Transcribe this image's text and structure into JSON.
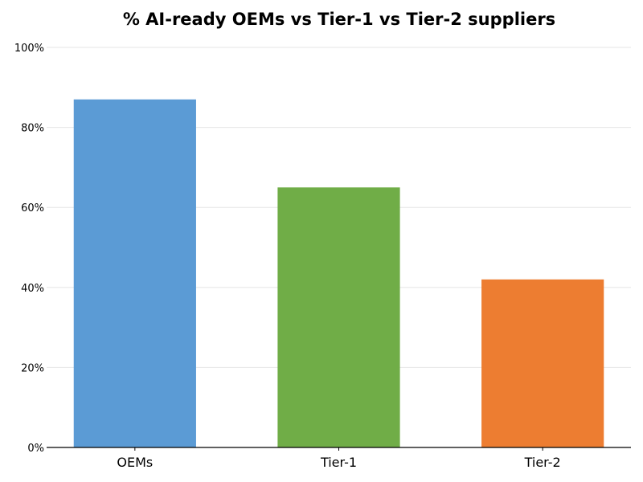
{
  "chart_data": {
    "type": "bar",
    "title": "% AI-ready OEMs vs Tier-1 vs Tier-2 suppliers",
    "xlabel": "",
    "ylabel": "",
    "categories": [
      "OEMs",
      "Tier-1",
      "Tier-2"
    ],
    "values": [
      87,
      65,
      42
    ],
    "colors": [
      "#5b9bd5",
      "#70ad47",
      "#ed7d31"
    ],
    "ylim": [
      0,
      100
    ],
    "yticks": [
      0,
      20,
      40,
      60,
      80,
      100
    ],
    "ytick_labels": [
      "0%",
      "20%",
      "40%",
      "60%",
      "80%",
      "100%"
    ],
    "grid": true,
    "gridColor": "#e6e6e6"
  }
}
